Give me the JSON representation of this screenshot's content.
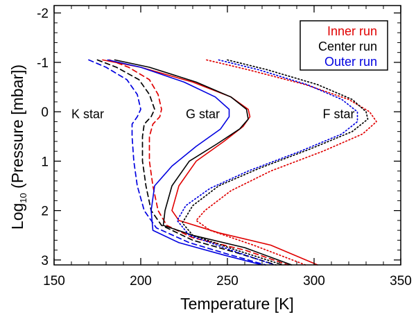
{
  "chart_data": {
    "type": "line",
    "title": "",
    "xlabel": "Temperature [K]",
    "ylabel_base": "Log",
    "ylabel_sub": "10",
    "ylabel_rest": " (Pressure [mbar])",
    "xlim": [
      150,
      350
    ],
    "ylim": [
      3.1,
      -2.15
    ],
    "xticks": [
      150,
      200,
      250,
      300,
      350
    ],
    "xtick_labels": [
      "150",
      "200",
      "250",
      "300",
      "350"
    ],
    "yticks": [
      -2,
      -1,
      0,
      1,
      2,
      3
    ],
    "ytick_labels": [
      "-2",
      "-1",
      "0",
      "1",
      "2",
      "3"
    ],
    "legend": {
      "position": "top-right",
      "entries": [
        {
          "label": "Inner run",
          "color": "#e00000"
        },
        {
          "label": "Center run",
          "color": "#000000"
        },
        {
          "label": "Outer run",
          "color": "#0000e0"
        }
      ]
    },
    "annotations": [
      {
        "text": "K star",
        "x": 160,
        "y": 0.13
      },
      {
        "text": "G star",
        "x": 226,
        "y": 0.13
      },
      {
        "text": "F star",
        "x": 305,
        "y": 0.13
      }
    ],
    "series": [
      {
        "name": "K star Inner run",
        "star": "K",
        "run": "Inner",
        "color": "#e00000",
        "dash": "dashed",
        "points": [
          [
            182,
            -1.05
          ],
          [
            193,
            -0.9
          ],
          [
            205,
            -0.65
          ],
          [
            210,
            -0.35
          ],
          [
            212,
            -0.05
          ],
          [
            211,
            0.1
          ],
          [
            207,
            0.25
          ],
          [
            205,
            0.5
          ],
          [
            205,
            1.0
          ],
          [
            207,
            1.5
          ],
          [
            210,
            2.0
          ],
          [
            215,
            2.3
          ],
          [
            230,
            2.55
          ],
          [
            260,
            2.8
          ],
          [
            285,
            3.1
          ]
        ]
      },
      {
        "name": "K star Center run",
        "star": "K",
        "run": "Center",
        "color": "#000000",
        "dash": "dashed",
        "points": [
          [
            175,
            -1.05
          ],
          [
            186,
            -0.9
          ],
          [
            199,
            -0.65
          ],
          [
            205,
            -0.35
          ],
          [
            208,
            -0.05
          ],
          [
            206,
            0.1
          ],
          [
            202,
            0.25
          ],
          [
            201,
            0.5
          ],
          [
            201,
            1.0
          ],
          [
            203,
            1.5
          ],
          [
            206,
            2.0
          ],
          [
            212,
            2.3
          ],
          [
            230,
            2.6
          ],
          [
            255,
            2.85
          ],
          [
            278,
            3.1
          ]
        ]
      },
      {
        "name": "K star Outer run",
        "star": "K",
        "run": "Outer",
        "color": "#0000e0",
        "dash": "dashed",
        "points": [
          [
            170,
            -1.05
          ],
          [
            180,
            -0.9
          ],
          [
            192,
            -0.65
          ],
          [
            198,
            -0.35
          ],
          [
            200,
            -0.05
          ],
          [
            198,
            0.1
          ],
          [
            195,
            0.25
          ],
          [
            195,
            0.5
          ],
          [
            196,
            1.0
          ],
          [
            198,
            1.5
          ],
          [
            202,
            2.0
          ],
          [
            209,
            2.35
          ],
          [
            228,
            2.65
          ],
          [
            252,
            2.9
          ],
          [
            272,
            3.1
          ]
        ]
      },
      {
        "name": "G star Inner run",
        "star": "G",
        "run": "Inner",
        "color": "#e00000",
        "dash": "solid",
        "points": [
          [
            178,
            -1.05
          ],
          [
            200,
            -0.9
          ],
          [
            230,
            -0.6
          ],
          [
            252,
            -0.3
          ],
          [
            262,
            -0.05
          ],
          [
            263,
            0.1
          ],
          [
            259,
            0.3
          ],
          [
            248,
            0.6
          ],
          [
            232,
            1.0
          ],
          [
            222,
            1.5
          ],
          [
            218,
            2.0
          ],
          [
            222,
            2.2
          ],
          [
            245,
            2.45
          ],
          [
            275,
            2.7
          ],
          [
            302,
            3.1
          ]
        ]
      },
      {
        "name": "G star Center run",
        "star": "G",
        "run": "Center",
        "color": "#000000",
        "dash": "solid",
        "points": [
          [
            185,
            -1.05
          ],
          [
            205,
            -0.9
          ],
          [
            232,
            -0.6
          ],
          [
            252,
            -0.3
          ],
          [
            261,
            -0.05
          ],
          [
            262,
            0.15
          ],
          [
            257,
            0.35
          ],
          [
            244,
            0.65
          ],
          [
            228,
            1.0
          ],
          [
            218,
            1.5
          ],
          [
            214,
            2.0
          ],
          [
            213,
            2.3
          ],
          [
            230,
            2.5
          ],
          [
            260,
            2.75
          ],
          [
            287,
            3.1
          ]
        ]
      },
      {
        "name": "G star Outer run",
        "star": "G",
        "run": "Outer",
        "color": "#0000e0",
        "dash": "solid",
        "points": [
          [
            181,
            -1.05
          ],
          [
            200,
            -0.9
          ],
          [
            225,
            -0.6
          ],
          [
            243,
            -0.3
          ],
          [
            251,
            -0.05
          ],
          [
            251,
            0.1
          ],
          [
            246,
            0.35
          ],
          [
            232,
            0.7
          ],
          [
            218,
            1.1
          ],
          [
            208,
            1.5
          ],
          [
            206,
            2.0
          ],
          [
            207,
            2.4
          ],
          [
            222,
            2.65
          ],
          [
            248,
            2.9
          ],
          [
            270,
            3.1
          ]
        ]
      },
      {
        "name": "F star Inner run",
        "star": "F",
        "run": "Inner",
        "color": "#e00000",
        "dash": "dotted",
        "points": [
          [
            238,
            -1.05
          ],
          [
            262,
            -0.85
          ],
          [
            295,
            -0.55
          ],
          [
            320,
            -0.25
          ],
          [
            332,
            0.0
          ],
          [
            336,
            0.2
          ],
          [
            328,
            0.45
          ],
          [
            305,
            0.8
          ],
          [
            275,
            1.2
          ],
          [
            252,
            1.6
          ],
          [
            237,
            2.0
          ],
          [
            232,
            2.2
          ],
          [
            240,
            2.4
          ],
          [
            265,
            2.7
          ],
          [
            295,
            3.1
          ]
        ]
      },
      {
        "name": "F star Center run",
        "star": "F",
        "run": "Center",
        "color": "#000000",
        "dash": "dotted",
        "points": [
          [
            250,
            -1.05
          ],
          [
            273,
            -0.85
          ],
          [
            302,
            -0.55
          ],
          [
            322,
            -0.25
          ],
          [
            330,
            0.0
          ],
          [
            331,
            0.15
          ],
          [
            322,
            0.4
          ],
          [
            298,
            0.75
          ],
          [
            268,
            1.15
          ],
          [
            245,
            1.5
          ],
          [
            230,
            1.9
          ],
          [
            224,
            2.25
          ],
          [
            230,
            2.5
          ],
          [
            255,
            2.8
          ],
          [
            282,
            3.1
          ]
        ]
      },
      {
        "name": "F star Outer run",
        "star": "F",
        "run": "Outer",
        "color": "#0000e0",
        "dash": "dotted",
        "points": [
          [
            245,
            -1.05
          ],
          [
            268,
            -0.85
          ],
          [
            296,
            -0.55
          ],
          [
            316,
            -0.25
          ],
          [
            325,
            0.0
          ],
          [
            325,
            0.2
          ],
          [
            316,
            0.45
          ],
          [
            292,
            0.8
          ],
          [
            262,
            1.2
          ],
          [
            240,
            1.55
          ],
          [
            226,
            1.9
          ],
          [
            221,
            2.2
          ],
          [
            228,
            2.5
          ],
          [
            252,
            2.8
          ],
          [
            277,
            3.1
          ]
        ]
      }
    ]
  }
}
